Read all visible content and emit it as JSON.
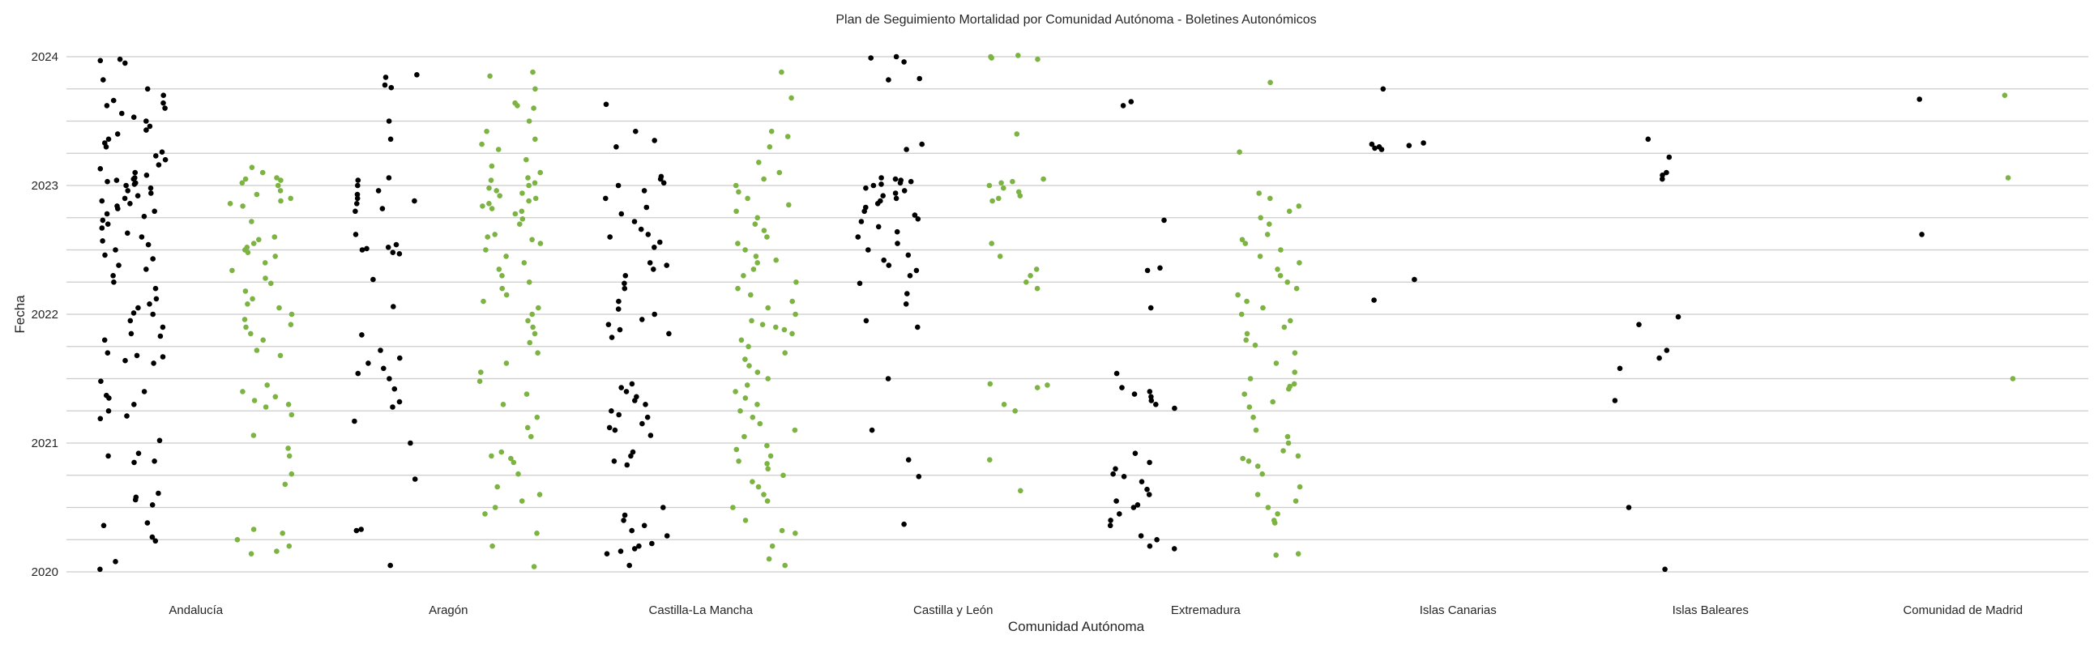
{
  "chart_data": {
    "type": "scatter",
    "title": "Plan de Seguimiento Mortalidad por Comunidad Autónoma - Boletines Autonómicos",
    "xlabel": "Comunidad Autónoma",
    "ylabel": "Fecha",
    "categories": [
      "Andalucía",
      "Aragón",
      "Castilla-La Mancha",
      "Castilla y León",
      "Extremadura",
      "Islas Canarias",
      "Islas Baleares",
      "Comunidad de Madrid"
    ],
    "ylim": [
      2020,
      2024
    ],
    "yticks": [
      "2020",
      "2021",
      "2022",
      "2023",
      "2024"
    ],
    "grid": true,
    "legend": "none",
    "series": [
      {
        "color": "#000000",
        "points": {
          "Andalucía": [
            2020.02,
            2020.08,
            2020.24,
            2020.27,
            2020.36,
            2020.38,
            2020.52,
            2020.56,
            2020.58,
            2020.61,
            2020.85,
            2020.86,
            2020.9,
            2020.92,
            2021.02,
            2021.19,
            2021.21,
            2021.25,
            2021.3,
            2021.35,
            2021.37,
            2021.4,
            2021.48,
            2021.62,
            2021.64,
            2021.67,
            2021.68,
            2021.7,
            2021.8,
            2021.83,
            2021.85,
            2021.9,
            2021.95,
            2022.0,
            2022.01,
            2022.05,
            2022.08,
            2022.12,
            2022.2,
            2022.25,
            2022.3,
            2022.35,
            2022.38,
            2022.43,
            2022.46,
            2022.5,
            2022.54,
            2022.57,
            2022.6,
            2022.63,
            2022.67,
            2022.7,
            2022.73,
            2022.76,
            2022.78,
            2022.8,
            2022.82,
            2022.84,
            2022.86,
            2022.88,
            2022.9,
            2022.92,
            2022.94,
            2022.96,
            2022.98,
            2023.0,
            2023.01,
            2023.02,
            2023.03,
            2023.04,
            2023.05,
            2023.06,
            2023.08,
            2023.1,
            2023.13,
            2023.16,
            2023.2,
            2023.23,
            2023.26,
            2023.3,
            2023.33,
            2023.36,
            2023.4,
            2023.43,
            2023.46,
            2023.5,
            2023.53,
            2023.56,
            2023.6,
            2023.62,
            2023.64,
            2023.66,
            2023.7,
            2023.75,
            2023.82,
            2023.95,
            2023.97,
            2023.98
          ],
          "Aragón": [
            2020.05,
            2020.32,
            2020.33,
            2020.72,
            2021.0,
            2021.17,
            2021.28,
            2021.32,
            2021.42,
            2021.5,
            2021.54,
            2021.58,
            2021.62,
            2021.66,
            2021.72,
            2021.84,
            2022.06,
            2022.27,
            2022.47,
            2022.48,
            2022.5,
            2022.51,
            2022.52,
            2022.54,
            2022.62,
            2022.8,
            2022.82,
            2022.86,
            2022.88,
            2022.9,
            2022.93,
            2022.96,
            2023.0,
            2023.04,
            2023.06,
            2023.36,
            2023.5,
            2023.76,
            2023.78,
            2023.84,
            2023.86
          ],
          "Castilla-La Mancha": [
            2020.05,
            2020.14,
            2020.16,
            2020.18,
            2020.2,
            2020.22,
            2020.28,
            2020.32,
            2020.36,
            2020.4,
            2020.44,
            2020.5,
            2020.83,
            2020.86,
            2020.9,
            2020.93,
            2021.06,
            2021.1,
            2021.12,
            2021.15,
            2021.2,
            2021.22,
            2021.25,
            2021.3,
            2021.33,
            2021.36,
            2021.4,
            2021.43,
            2021.46,
            2021.82,
            2021.85,
            2021.88,
            2021.92,
            2021.96,
            2022.0,
            2022.04,
            2022.1,
            2022.2,
            2022.24,
            2022.3,
            2022.35,
            2022.38,
            2022.4,
            2022.52,
            2022.56,
            2022.6,
            2022.62,
            2022.66,
            2022.72,
            2022.78,
            2022.83,
            2022.9,
            2022.96,
            2023.0,
            2023.02,
            2023.05,
            2023.07,
            2023.3,
            2023.35,
            2023.42,
            2023.63
          ],
          "Castilla y León": [
            2020.37,
            2020.74,
            2020.87,
            2021.1,
            2021.5,
            2021.9,
            2021.95,
            2022.08,
            2022.16,
            2022.24,
            2022.3,
            2022.34,
            2022.38,
            2022.42,
            2022.46,
            2022.5,
            2022.55,
            2022.6,
            2022.64,
            2022.68,
            2022.72,
            2022.74,
            2022.77,
            2022.8,
            2022.83,
            2022.86,
            2022.88,
            2022.9,
            2022.92,
            2022.94,
            2022.96,
            2022.98,
            2023.0,
            2023.01,
            2023.02,
            2023.03,
            2023.04,
            2023.05,
            2023.06,
            2023.28,
            2023.32,
            2023.82,
            2023.83,
            2023.96,
            2023.99,
            2024.0
          ],
          "Extremadura": [
            2020.18,
            2020.2,
            2020.25,
            2020.28,
            2020.36,
            2020.4,
            2020.45,
            2020.5,
            2020.52,
            2020.55,
            2020.6,
            2020.64,
            2020.7,
            2020.74,
            2020.76,
            2020.8,
            2020.85,
            2020.92,
            2021.27,
            2021.3,
            2021.33,
            2021.36,
            2021.38,
            2021.4,
            2021.43,
            2021.54,
            2022.05,
            2022.34,
            2022.36,
            2022.73,
            2023.62,
            2023.65
          ],
          "Islas Canarias": [
            2022.11,
            2022.27,
            2023.28,
            2023.29,
            2023.3,
            2023.31,
            2023.32,
            2023.33,
            2023.75
          ],
          "Islas Baleares": [
            2020.02,
            2020.5,
            2021.33,
            2021.58,
            2021.66,
            2021.72,
            2021.92,
            2021.98,
            2023.05,
            2023.08,
            2023.1,
            2023.22,
            2023.36
          ],
          "Comunidad de Madrid": [
            2022.62,
            2023.67
          ]
        }
      },
      {
        "color": "#7cb342",
        "points": {
          "Andalucía": [
            2020.14,
            2020.16,
            2020.2,
            2020.25,
            2020.3,
            2020.33,
            2020.68,
            2020.76,
            2020.9,
            2020.96,
            2021.06,
            2021.22,
            2021.28,
            2021.3,
            2021.33,
            2021.36,
            2021.4,
            2021.45,
            2021.68,
            2021.72,
            2021.8,
            2021.85,
            2021.9,
            2021.92,
            2021.96,
            2022.0,
            2022.05,
            2022.08,
            2022.12,
            2022.18,
            2022.24,
            2022.28,
            2022.34,
            2022.4,
            2022.45,
            2022.48,
            2022.5,
            2022.52,
            2022.55,
            2022.58,
            2022.6,
            2022.72,
            2022.84,
            2022.86,
            2022.88,
            2022.9,
            2022.93,
            2022.96,
            2023.0,
            2023.02,
            2023.04,
            2023.05,
            2023.06,
            2023.1,
            2023.14
          ],
          "Aragón": [
            2020.04,
            2020.2,
            2020.3,
            2020.45,
            2020.5,
            2020.55,
            2020.6,
            2020.66,
            2020.76,
            2020.85,
            2020.88,
            2020.9,
            2020.93,
            2021.05,
            2021.12,
            2021.2,
            2021.3,
            2021.38,
            2021.48,
            2021.55,
            2021.62,
            2021.7,
            2021.78,
            2021.85,
            2021.9,
            2021.95,
            2022.0,
            2022.05,
            2022.1,
            2022.15,
            2022.2,
            2022.25,
            2022.3,
            2022.35,
            2022.4,
            2022.45,
            2022.5,
            2022.55,
            2022.58,
            2022.6,
            2022.62,
            2022.7,
            2022.74,
            2022.78,
            2022.8,
            2022.82,
            2022.84,
            2022.86,
            2022.88,
            2022.9,
            2022.92,
            2022.94,
            2022.96,
            2022.98,
            2023.0,
            2023.02,
            2023.04,
            2023.06,
            2023.1,
            2023.15,
            2023.2,
            2023.28,
            2023.32,
            2023.36,
            2023.42,
            2023.5,
            2023.6,
            2023.62,
            2023.64,
            2023.75,
            2023.85,
            2023.88
          ],
          "Castilla-La Mancha": [
            2020.05,
            2020.1,
            2020.2,
            2020.3,
            2020.32,
            2020.4,
            2020.5,
            2020.55,
            2020.6,
            2020.66,
            2020.7,
            2020.75,
            2020.8,
            2020.84,
            2020.86,
            2020.9,
            2020.95,
            2020.98,
            2021.05,
            2021.1,
            2021.15,
            2021.2,
            2021.25,
            2021.3,
            2021.35,
            2021.4,
            2021.45,
            2021.5,
            2021.55,
            2021.6,
            2021.65,
            2021.7,
            2021.75,
            2021.8,
            2021.85,
            2021.88,
            2021.9,
            2021.92,
            2021.95,
            2022.0,
            2022.05,
            2022.1,
            2022.15,
            2022.2,
            2022.25,
            2022.3,
            2022.35,
            2022.4,
            2022.42,
            2022.45,
            2022.5,
            2022.55,
            2022.6,
            2022.65,
            2022.7,
            2022.75,
            2022.8,
            2022.85,
            2022.9,
            2022.95,
            2023.0,
            2023.05,
            2023.1,
            2023.18,
            2023.3,
            2023.38,
            2023.42,
            2023.68,
            2023.88
          ],
          "Castilla y León": [
            2020.63,
            2020.87,
            2021.25,
            2021.3,
            2021.43,
            2021.45,
            2021.46,
            2022.2,
            2022.25,
            2022.3,
            2022.35,
            2022.45,
            2022.55,
            2022.88,
            2022.9,
            2022.92,
            2022.95,
            2022.98,
            2023.0,
            2023.02,
            2023.03,
            2023.05,
            2023.4,
            2023.98,
            2023.99,
            2024.0,
            2024.01
          ],
          "Extremadura": [
            2020.13,
            2020.14,
            2020.38,
            2020.4,
            2020.45,
            2020.5,
            2020.55,
            2020.6,
            2020.66,
            2020.76,
            2020.82,
            2020.86,
            2020.88,
            2020.9,
            2020.94,
            2021.0,
            2021.05,
            2021.1,
            2021.2,
            2021.28,
            2021.32,
            2021.38,
            2021.42,
            2021.44,
            2021.46,
            2021.5,
            2021.55,
            2021.62,
            2021.7,
            2021.76,
            2021.8,
            2021.85,
            2021.9,
            2021.95,
            2022.0,
            2022.05,
            2022.1,
            2022.15,
            2022.2,
            2022.25,
            2022.3,
            2022.35,
            2022.4,
            2022.45,
            2022.5,
            2022.55,
            2022.58,
            2022.62,
            2022.7,
            2022.75,
            2022.8,
            2022.84,
            2022.9,
            2022.94,
            2023.26,
            2023.8
          ],
          "Islas Canarias": [],
          "Islas Baleares": [],
          "Comunidad de Madrid": [
            2021.5,
            2023.06,
            2023.7
          ]
        }
      }
    ]
  }
}
